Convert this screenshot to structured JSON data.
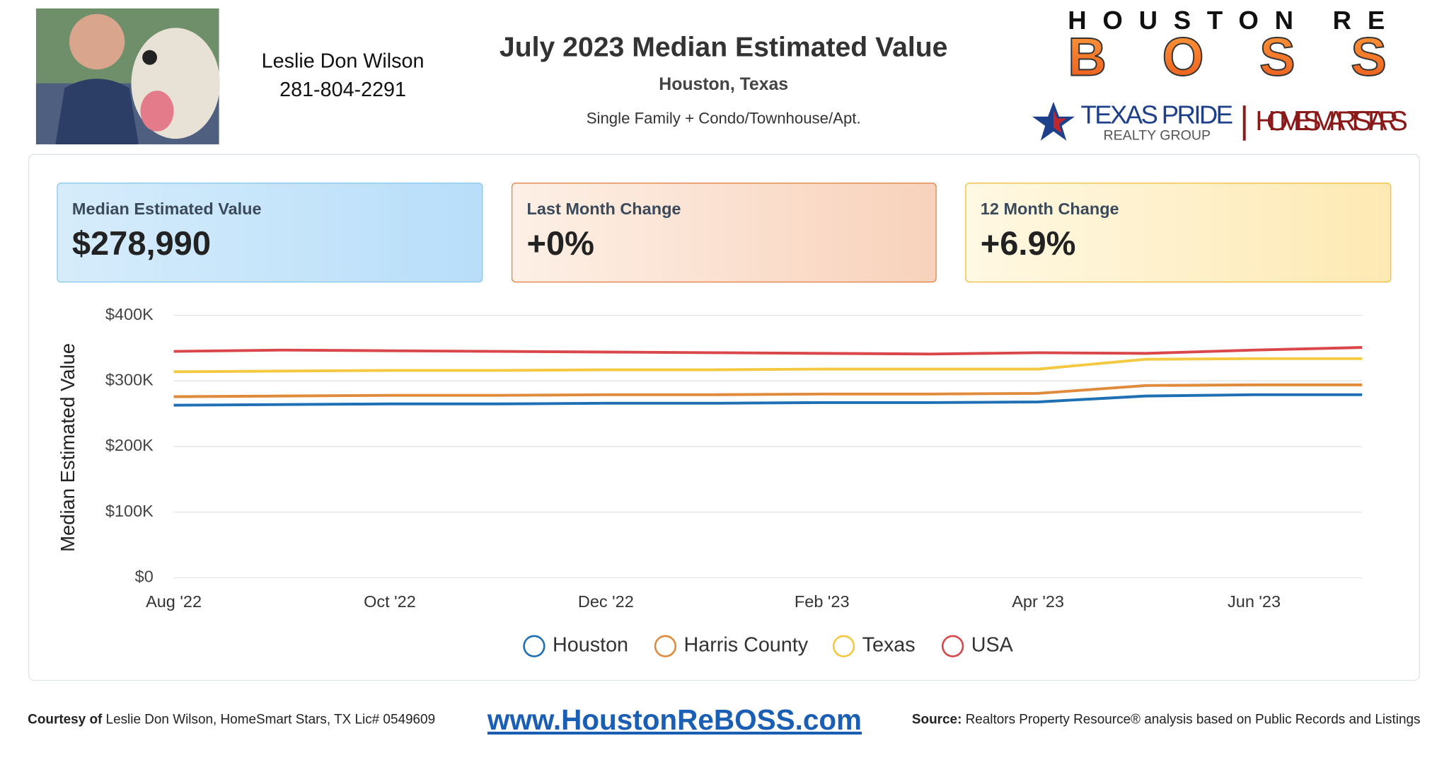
{
  "header": {
    "agent_name": "Leslie Don Wilson",
    "agent_phone": "281-804-2291",
    "title": "July 2023 Median Estimated Value",
    "location": "Houston, Texas",
    "property_types": "Single Family + Condo/Townhouse/Apt.",
    "logo": {
      "line1": "HOUSTON RE",
      "line2": "BOSS",
      "brand1": "TEXAS PRIDE",
      "brand1_sub": "REALTY GROUP",
      "brand2": "HOMESMART STARS"
    }
  },
  "cards": [
    {
      "label": "Median Estimated Value",
      "value": "$278,990"
    },
    {
      "label": "Last Month Change",
      "value": "+0%"
    },
    {
      "label": "12 Month Change",
      "value": "+6.9%"
    }
  ],
  "chart_data": {
    "type": "line",
    "y_label": "Median Estimated Value",
    "categories": [
      "Aug '22",
      null,
      "Oct '22",
      null,
      "Dec '22",
      null,
      "Feb '23",
      null,
      "Apr '23",
      null,
      "Jun '23",
      null
    ],
    "ylim": [
      0,
      400000
    ],
    "yticks": [
      {
        "value": 0,
        "label": "$0"
      },
      {
        "value": 100000,
        "label": "$100K"
      },
      {
        "value": 200000,
        "label": "$200K"
      },
      {
        "value": 300000,
        "label": "$300K"
      },
      {
        "value": 400000,
        "label": "$400K"
      }
    ],
    "grid": true,
    "legend": "bottom",
    "series": [
      {
        "name": "Houston",
        "color": "#1f6fb4",
        "values": [
          263000,
          264000,
          265000,
          265000,
          266000,
          266000,
          267000,
          267000,
          268000,
          277000,
          278990,
          278990
        ]
      },
      {
        "name": "Harris County",
        "color": "#e08a3c",
        "values": [
          276000,
          277000,
          278000,
          278000,
          279000,
          279000,
          280000,
          280000,
          281000,
          293000,
          294000,
          294000
        ]
      },
      {
        "name": "Texas",
        "color": "#f5c842",
        "values": [
          314000,
          315000,
          316000,
          316000,
          317000,
          317000,
          318000,
          318000,
          318000,
          333000,
          334000,
          334000
        ]
      },
      {
        "name": "USA",
        "color": "#d9474a",
        "values": [
          345000,
          347000,
          346000,
          345000,
          344000,
          343000,
          342000,
          341000,
          343000,
          342000,
          347000,
          351000
        ]
      }
    ]
  },
  "footer": {
    "courtesy_label": "Courtesy of",
    "courtesy_text": "Leslie Don Wilson, HomeSmart Stars, TX Lic# 0549609",
    "website": "www.HoustonReBOSS.com",
    "source_label": "Source:",
    "source_text": "Realtors Property Resource® analysis based on Public Records and Listings"
  }
}
